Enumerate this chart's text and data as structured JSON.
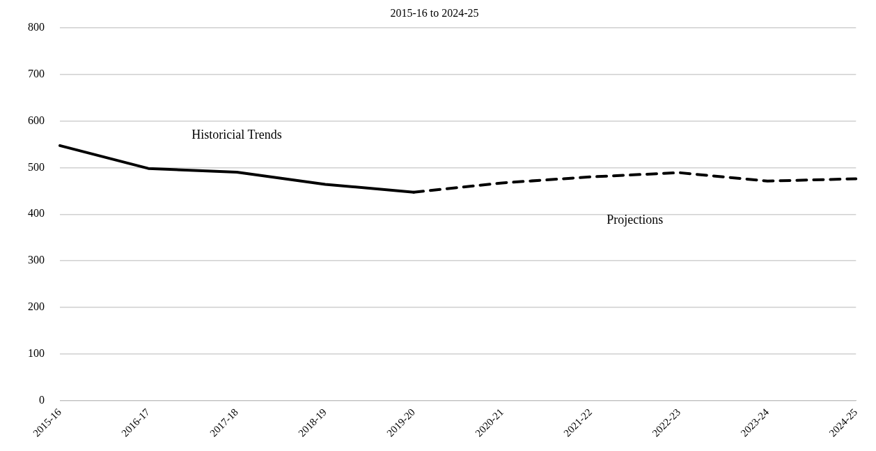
{
  "chart_data": {
    "type": "line",
    "title": "2015-16 to 2024-25",
    "categories": [
      "2015-16",
      "2016-17",
      "2017-18",
      "2018-19",
      "2019-20",
      "2020-21",
      "2021-22",
      "2022-23",
      "2023-24",
      "2024-25"
    ],
    "series": [
      {
        "name": "Historicial Trends",
        "color": "#000000",
        "line_style": "solid",
        "values": [
          547,
          498,
          490,
          464,
          447,
          null,
          null,
          null,
          null,
          null
        ]
      },
      {
        "name": "Projections",
        "color": "#000000",
        "line_style": "dashed",
        "values": [
          null,
          null,
          null,
          null,
          447,
          467,
          480,
          489,
          471,
          476
        ]
      }
    ],
    "ylim": [
      0,
      800
    ],
    "yticks": [
      0,
      100,
      200,
      300,
      400,
      500,
      600,
      700,
      800
    ],
    "grid": "y",
    "legend": false,
    "marker": "none"
  }
}
